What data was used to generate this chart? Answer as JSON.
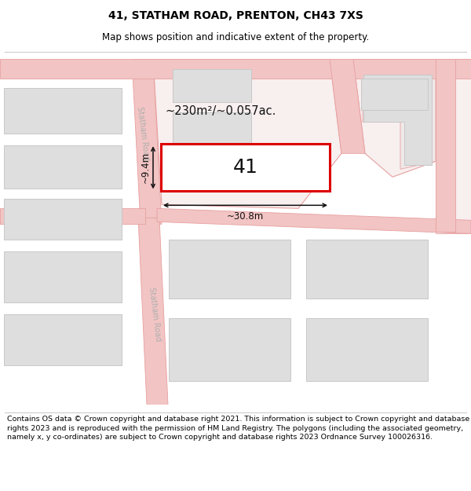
{
  "title": "41, STATHAM ROAD, PRENTON, CH43 7XS",
  "subtitle": "Map shows position and indicative extent of the property.",
  "footer": "Contains OS data © Crown copyright and database right 2021. This information is subject to Crown copyright and database rights 2023 and is reproduced with the permission of HM Land Registry. The polygons (including the associated geometry, namely x, y co-ordinates) are subject to Crown copyright and database rights 2023 Ordnance Survey 100026316.",
  "bg_color": "#ffffff",
  "map_bg": "#f9f7f7",
  "road_color": "#f2c4c4",
  "road_outline": "#e8a0a0",
  "building_color": "#dedede",
  "building_outline": "#c8c8c8",
  "highlight_color": "#dd0000",
  "highlight_fill": "#ffffff",
  "dim_color": "#111111",
  "area_text": "~230m²/~0.057ac.",
  "width_text": "~30.8m",
  "height_text": "~9.4m",
  "number_text": "41",
  "road_label": "Statham Road",
  "title_fontsize": 10,
  "subtitle_fontsize": 8.5,
  "footer_fontsize": 6.8
}
